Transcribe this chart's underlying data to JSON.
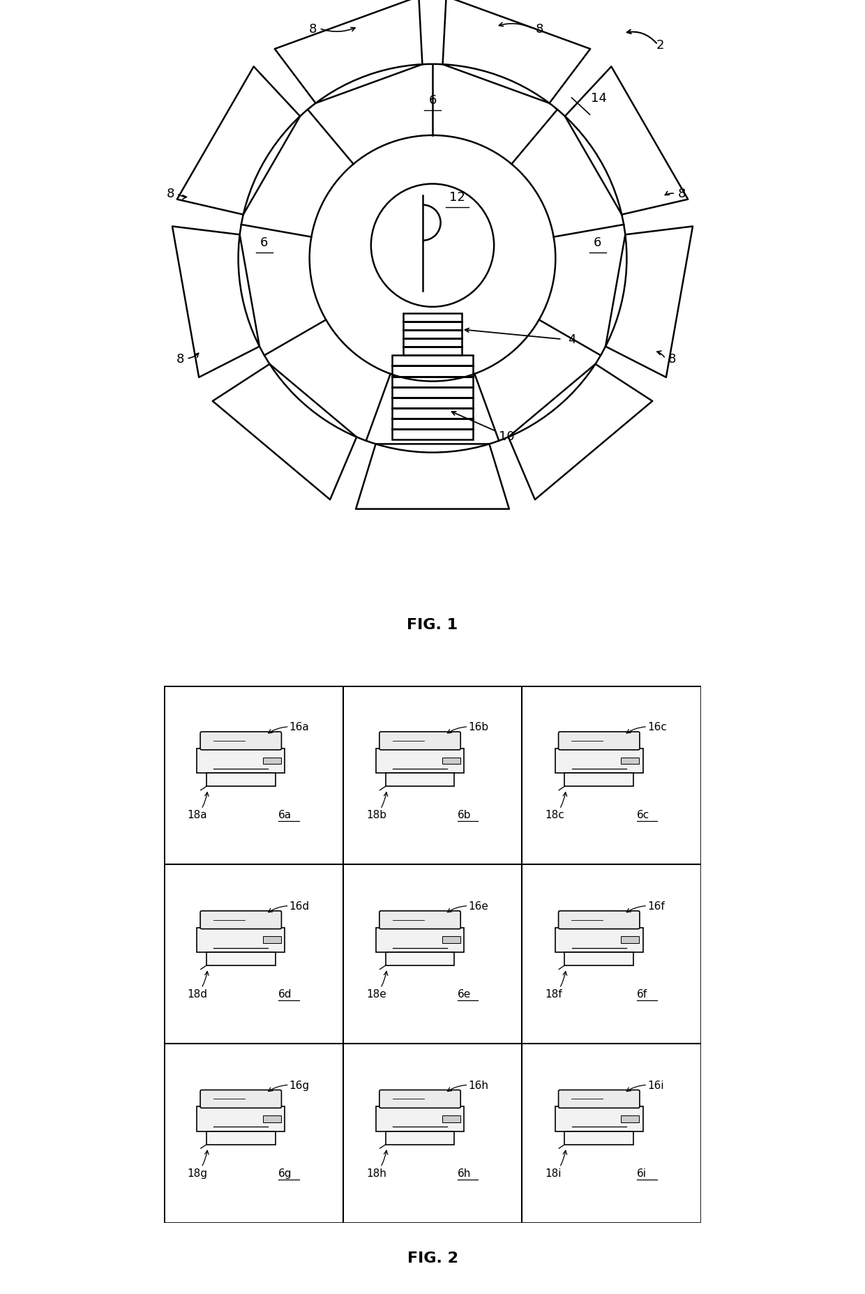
{
  "fig1_title": "FIG. 1",
  "fig2_title": "FIG. 2",
  "grid_cells": [
    [
      "16a",
      "18a",
      "6a"
    ],
    [
      "16b",
      "18b",
      "6b"
    ],
    [
      "16c",
      "18c",
      "6c"
    ],
    [
      "16d",
      "18d",
      "6d"
    ],
    [
      "16e",
      "18e",
      "6e"
    ],
    [
      "16f",
      "18f",
      "6f"
    ],
    [
      "16g",
      "18g",
      "6g"
    ],
    [
      "16h",
      "18h",
      "6h"
    ],
    [
      "16i",
      "18i",
      "6i"
    ]
  ],
  "background_color": "#ffffff",
  "line_color": "#000000",
  "text_color": "#000000",
  "fig_label_fontsize": 16,
  "annotation_fontsize": 13,
  "grid_annotation_fontsize": 11
}
